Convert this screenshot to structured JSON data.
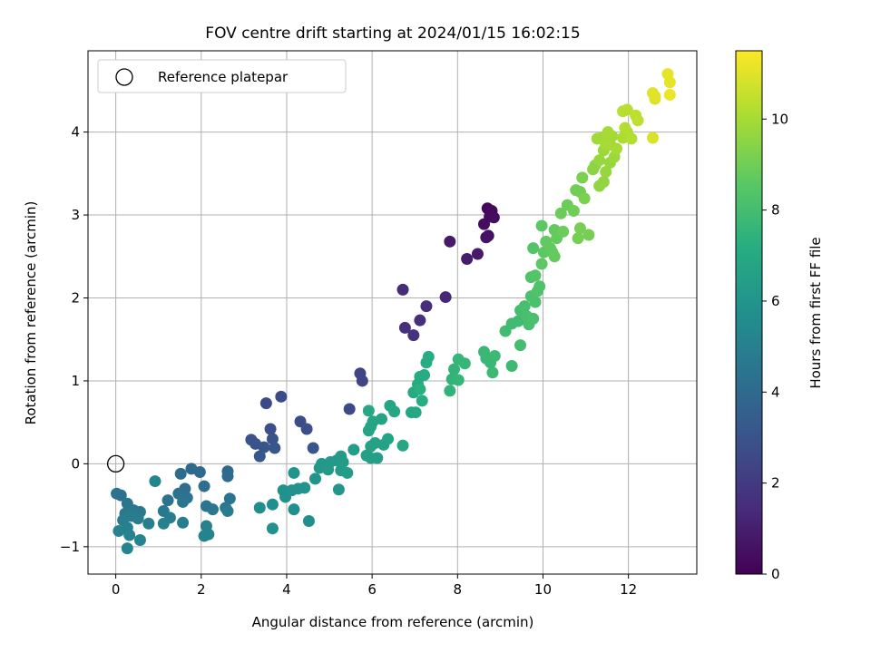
{
  "chart_data": {
    "type": "scatter",
    "title": "FOV centre drift starting at 2024/01/15 16:02:15",
    "xlabel": "Angular distance from reference (arcmin)",
    "ylabel": "Rotation from reference (arcmin)",
    "xlim": [
      -0.65,
      13.6
    ],
    "ylim": [
      -1.33,
      4.98
    ],
    "xticks": [
      0,
      2,
      4,
      6,
      8,
      10,
      12
    ],
    "yticks": [
      -1,
      0,
      1,
      2,
      3,
      4
    ],
    "xtick_labels": [
      "0",
      "2",
      "4",
      "6",
      "8",
      "10",
      "12"
    ],
    "ytick_labels": [
      "−1",
      "0",
      "1",
      "2",
      "3",
      "4"
    ],
    "grid": true,
    "legend": {
      "position": "upper-left",
      "entries": [
        "Reference platepar"
      ]
    },
    "reference_point": {
      "x": 0,
      "y": 0
    },
    "colorbar": {
      "label": "Hours from first FF file",
      "range": [
        0,
        11.5
      ],
      "ticks": [
        0,
        2,
        4,
        6,
        8,
        10
      ],
      "tick_labels": [
        "0",
        "2",
        "4",
        "6",
        "8",
        "10"
      ],
      "colormap": "viridis"
    },
    "point_series": {
      "value_field": "hours",
      "points": [
        {
          "x": 8.7,
          "y": 3.08,
          "h": 0.2
        },
        {
          "x": 8.8,
          "y": 3.05,
          "h": 0.3
        },
        {
          "x": 8.75,
          "y": 2.98,
          "h": 0.3
        },
        {
          "x": 8.85,
          "y": 2.97,
          "h": 0.4
        },
        {
          "x": 8.62,
          "y": 2.89,
          "h": 0.4
        },
        {
          "x": 8.72,
          "y": 2.75,
          "h": 0.5
        },
        {
          "x": 8.67,
          "y": 2.73,
          "h": 0.6
        },
        {
          "x": 7.82,
          "y": 2.68,
          "h": 0.8
        },
        {
          "x": 8.47,
          "y": 2.53,
          "h": 0.8
        },
        {
          "x": 8.22,
          "y": 2.47,
          "h": 0.9
        },
        {
          "x": 7.72,
          "y": 2.01,
          "h": 1.3
        },
        {
          "x": 6.72,
          "y": 2.1,
          "h": 1.4
        },
        {
          "x": 7.27,
          "y": 1.9,
          "h": 1.5
        },
        {
          "x": 7.12,
          "y": 1.73,
          "h": 1.6
        },
        {
          "x": 6.77,
          "y": 1.64,
          "h": 1.6
        },
        {
          "x": 6.97,
          "y": 1.55,
          "h": 1.7
        },
        {
          "x": 5.72,
          "y": 1.09,
          "h": 2.4
        },
        {
          "x": 5.77,
          "y": 1.0,
          "h": 2.4
        },
        {
          "x": 3.87,
          "y": 0.81,
          "h": 2.6
        },
        {
          "x": 3.52,
          "y": 0.73,
          "h": 2.6
        },
        {
          "x": 5.47,
          "y": 0.66,
          "h": 2.6
        },
        {
          "x": 4.32,
          "y": 0.51,
          "h": 2.7
        },
        {
          "x": 4.47,
          "y": 0.42,
          "h": 2.8
        },
        {
          "x": 3.62,
          "y": 0.42,
          "h": 2.8
        },
        {
          "x": 3.67,
          "y": 0.3,
          "h": 2.9
        },
        {
          "x": 3.17,
          "y": 0.29,
          "h": 3.0
        },
        {
          "x": 3.27,
          "y": 0.24,
          "h": 3.0
        },
        {
          "x": 3.47,
          "y": 0.2,
          "h": 3.1
        },
        {
          "x": 4.62,
          "y": 0.19,
          "h": 3.1
        },
        {
          "x": 3.72,
          "y": 0.19,
          "h": 3.1
        },
        {
          "x": 3.37,
          "y": 0.09,
          "h": 3.2
        },
        {
          "x": 1.77,
          "y": -0.06,
          "h": 4.0
        },
        {
          "x": 2.62,
          "y": -0.09,
          "h": 4.0
        },
        {
          "x": 1.97,
          "y": -0.1,
          "h": 4.0
        },
        {
          "x": 1.52,
          "y": -0.12,
          "h": 4.1
        },
        {
          "x": 2.62,
          "y": -0.15,
          "h": 4.1
        },
        {
          "x": 2.07,
          "y": -0.27,
          "h": 4.2
        },
        {
          "x": 1.62,
          "y": -0.3,
          "h": 4.2
        },
        {
          "x": 1.47,
          "y": -0.36,
          "h": 4.3
        },
        {
          "x": 0.02,
          "y": -0.36,
          "h": 4.3
        },
        {
          "x": 0.12,
          "y": -0.38,
          "h": 4.3
        },
        {
          "x": 1.67,
          "y": -0.41,
          "h": 4.4
        },
        {
          "x": 2.67,
          "y": -0.42,
          "h": 4.4
        },
        {
          "x": 1.22,
          "y": -0.44,
          "h": 4.4
        },
        {
          "x": 1.57,
          "y": -0.46,
          "h": 4.5
        },
        {
          "x": 0.27,
          "y": -0.48,
          "h": 4.5
        },
        {
          "x": 2.12,
          "y": -0.51,
          "h": 4.5
        },
        {
          "x": 2.57,
          "y": -0.53,
          "h": 4.6
        },
        {
          "x": 2.27,
          "y": -0.55,
          "h": 4.6
        },
        {
          "x": 0.42,
          "y": -0.56,
          "h": 4.6
        },
        {
          "x": 1.12,
          "y": -0.57,
          "h": 4.7
        },
        {
          "x": 0.57,
          "y": -0.58,
          "h": 4.7
        },
        {
          "x": 0.22,
          "y": -0.6,
          "h": 4.7
        },
        {
          "x": 0.37,
          "y": -0.63,
          "h": 4.8
        },
        {
          "x": 1.27,
          "y": -0.65,
          "h": 4.8
        },
        {
          "x": 0.52,
          "y": -0.66,
          "h": 4.8
        },
        {
          "x": 2.62,
          "y": -0.57,
          "h": 4.8
        },
        {
          "x": 0.17,
          "y": -0.68,
          "h": 4.9
        },
        {
          "x": 1.57,
          "y": -0.71,
          "h": 4.9
        },
        {
          "x": 0.77,
          "y": -0.72,
          "h": 4.9
        },
        {
          "x": 1.12,
          "y": -0.72,
          "h": 5.0
        },
        {
          "x": 2.12,
          "y": -0.75,
          "h": 5.0
        },
        {
          "x": 0.27,
          "y": -0.77,
          "h": 5.0
        },
        {
          "x": 0.07,
          "y": -0.81,
          "h": 5.1
        },
        {
          "x": 2.17,
          "y": -0.85,
          "h": 5.1
        },
        {
          "x": 2.07,
          "y": -0.87,
          "h": 5.1
        },
        {
          "x": 0.32,
          "y": -0.86,
          "h": 5.2
        },
        {
          "x": 0.57,
          "y": -0.92,
          "h": 5.2
        },
        {
          "x": 0.27,
          "y": -1.02,
          "h": 5.2
        },
        {
          "x": 0.92,
          "y": -0.21,
          "h": 5.3
        },
        {
          "x": 3.37,
          "y": -0.53,
          "h": 5.6
        },
        {
          "x": 3.67,
          "y": -0.49,
          "h": 5.7
        },
        {
          "x": 4.17,
          "y": -0.55,
          "h": 5.7
        },
        {
          "x": 4.52,
          "y": -0.69,
          "h": 5.7
        },
        {
          "x": 3.67,
          "y": -0.78,
          "h": 5.8
        },
        {
          "x": 3.92,
          "y": -0.32,
          "h": 5.8
        },
        {
          "x": 3.97,
          "y": -0.4,
          "h": 5.8
        },
        {
          "x": 4.12,
          "y": -0.32,
          "h": 5.9
        },
        {
          "x": 4.27,
          "y": -0.3,
          "h": 5.9
        },
        {
          "x": 4.42,
          "y": -0.29,
          "h": 5.9
        },
        {
          "x": 4.17,
          "y": -0.11,
          "h": 6.0
        },
        {
          "x": 4.67,
          "y": -0.18,
          "h": 6.0
        },
        {
          "x": 4.77,
          "y": -0.05,
          "h": 6.1
        },
        {
          "x": 5.22,
          "y": -0.31,
          "h": 6.1
        },
        {
          "x": 4.82,
          "y": 0.0,
          "h": 6.1
        },
        {
          "x": 4.97,
          "y": -0.07,
          "h": 6.2
        },
        {
          "x": 5.02,
          "y": 0.02,
          "h": 6.2
        },
        {
          "x": 5.17,
          "y": 0.04,
          "h": 6.2
        },
        {
          "x": 5.27,
          "y": 0.09,
          "h": 6.3
        },
        {
          "x": 5.32,
          "y": 0.02,
          "h": 6.3
        },
        {
          "x": 5.27,
          "y": -0.08,
          "h": 6.3
        },
        {
          "x": 5.42,
          "y": -0.11,
          "h": 6.4
        },
        {
          "x": 5.57,
          "y": 0.17,
          "h": 6.4
        },
        {
          "x": 5.87,
          "y": 0.1,
          "h": 6.5
        },
        {
          "x": 5.97,
          "y": 0.07,
          "h": 6.5
        },
        {
          "x": 6.12,
          "y": 0.07,
          "h": 6.5
        },
        {
          "x": 5.97,
          "y": 0.21,
          "h": 6.6
        },
        {
          "x": 6.07,
          "y": 0.25,
          "h": 6.6
        },
        {
          "x": 6.27,
          "y": 0.23,
          "h": 6.6
        },
        {
          "x": 6.37,
          "y": 0.3,
          "h": 6.7
        },
        {
          "x": 5.92,
          "y": 0.4,
          "h": 6.7
        },
        {
          "x": 6.22,
          "y": 0.54,
          "h": 6.7
        },
        {
          "x": 5.97,
          "y": 0.45,
          "h": 6.8
        },
        {
          "x": 6.02,
          "y": 0.51,
          "h": 6.8
        },
        {
          "x": 6.42,
          "y": 0.7,
          "h": 6.8
        },
        {
          "x": 6.52,
          "y": 0.63,
          "h": 6.9
        },
        {
          "x": 6.72,
          "y": 0.22,
          "h": 6.9
        },
        {
          "x": 6.92,
          "y": 0.62,
          "h": 6.9
        },
        {
          "x": 5.92,
          "y": 0.64,
          "h": 7.0
        },
        {
          "x": 6.97,
          "y": 0.86,
          "h": 7.0
        },
        {
          "x": 7.02,
          "y": 0.62,
          "h": 7.0
        },
        {
          "x": 7.07,
          "y": 0.96,
          "h": 7.1
        },
        {
          "x": 7.12,
          "y": 1.05,
          "h": 7.1
        },
        {
          "x": 7.22,
          "y": 1.07,
          "h": 7.1
        },
        {
          "x": 7.17,
          "y": 0.76,
          "h": 7.2
        },
        {
          "x": 7.27,
          "y": 1.22,
          "h": 7.2
        },
        {
          "x": 7.32,
          "y": 1.29,
          "h": 7.2
        },
        {
          "x": 7.12,
          "y": 0.9,
          "h": 7.3
        },
        {
          "x": 7.82,
          "y": 0.88,
          "h": 7.5
        },
        {
          "x": 7.87,
          "y": 1.02,
          "h": 7.5
        },
        {
          "x": 7.92,
          "y": 1.14,
          "h": 7.5
        },
        {
          "x": 8.02,
          "y": 1.01,
          "h": 7.6
        },
        {
          "x": 8.02,
          "y": 1.26,
          "h": 7.6
        },
        {
          "x": 8.17,
          "y": 1.21,
          "h": 7.6
        },
        {
          "x": 8.62,
          "y": 1.35,
          "h": 7.7
        },
        {
          "x": 8.77,
          "y": 1.22,
          "h": 7.7
        },
        {
          "x": 8.67,
          "y": 1.27,
          "h": 7.7
        },
        {
          "x": 8.82,
          "y": 1.1,
          "h": 7.8
        },
        {
          "x": 8.87,
          "y": 1.3,
          "h": 7.8
        },
        {
          "x": 9.27,
          "y": 1.18,
          "h": 7.8
        },
        {
          "x": 9.12,
          "y": 1.6,
          "h": 7.9
        },
        {
          "x": 9.27,
          "y": 1.69,
          "h": 7.9
        },
        {
          "x": 9.42,
          "y": 1.72,
          "h": 7.9
        },
        {
          "x": 9.47,
          "y": 1.43,
          "h": 8.0
        },
        {
          "x": 9.47,
          "y": 1.85,
          "h": 8.0
        },
        {
          "x": 9.57,
          "y": 1.9,
          "h": 8.1
        },
        {
          "x": 9.67,
          "y": 1.68,
          "h": 8.1
        },
        {
          "x": 9.62,
          "y": 1.78,
          "h": 8.1
        },
        {
          "x": 9.77,
          "y": 1.75,
          "h": 8.2
        },
        {
          "x": 9.72,
          "y": 2.02,
          "h": 8.2
        },
        {
          "x": 9.82,
          "y": 1.95,
          "h": 8.2
        },
        {
          "x": 9.87,
          "y": 2.08,
          "h": 8.3
        },
        {
          "x": 9.92,
          "y": 2.14,
          "h": 8.3
        },
        {
          "x": 9.72,
          "y": 2.25,
          "h": 8.3
        },
        {
          "x": 9.77,
          "y": 2.6,
          "h": 8.4
        },
        {
          "x": 9.82,
          "y": 2.27,
          "h": 8.4
        },
        {
          "x": 9.97,
          "y": 2.41,
          "h": 8.6
        },
        {
          "x": 10.02,
          "y": 2.55,
          "h": 8.6
        },
        {
          "x": 9.97,
          "y": 2.87,
          "h": 8.6
        },
        {
          "x": 10.07,
          "y": 2.68,
          "h": 8.7
        },
        {
          "x": 10.22,
          "y": 2.55,
          "h": 8.7
        },
        {
          "x": 10.17,
          "y": 2.6,
          "h": 8.7
        },
        {
          "x": 10.27,
          "y": 2.5,
          "h": 8.8
        },
        {
          "x": 10.32,
          "y": 2.72,
          "h": 8.8
        },
        {
          "x": 10.27,
          "y": 2.82,
          "h": 8.8
        },
        {
          "x": 10.42,
          "y": 3.02,
          "h": 8.9
        },
        {
          "x": 10.47,
          "y": 2.8,
          "h": 8.9
        },
        {
          "x": 10.57,
          "y": 3.12,
          "h": 8.9
        },
        {
          "x": 10.77,
          "y": 3.3,
          "h": 9.0
        },
        {
          "x": 10.87,
          "y": 3.28,
          "h": 9.0
        },
        {
          "x": 10.72,
          "y": 3.05,
          "h": 9.0
        },
        {
          "x": 10.87,
          "y": 2.84,
          "h": 9.1
        },
        {
          "x": 10.82,
          "y": 2.72,
          "h": 9.1
        },
        {
          "x": 11.07,
          "y": 2.76,
          "h": 9.1
        },
        {
          "x": 10.97,
          "y": 3.2,
          "h": 9.2
        },
        {
          "x": 10.92,
          "y": 3.45,
          "h": 9.2
        },
        {
          "x": 11.17,
          "y": 3.55,
          "h": 9.5
        },
        {
          "x": 11.22,
          "y": 3.6,
          "h": 9.5
        },
        {
          "x": 11.32,
          "y": 3.35,
          "h": 9.6
        },
        {
          "x": 11.42,
          "y": 3.4,
          "h": 9.6
        },
        {
          "x": 11.47,
          "y": 3.52,
          "h": 9.7
        },
        {
          "x": 11.32,
          "y": 3.66,
          "h": 9.7
        },
        {
          "x": 11.57,
          "y": 3.63,
          "h": 9.7
        },
        {
          "x": 11.42,
          "y": 3.78,
          "h": 9.8
        },
        {
          "x": 11.57,
          "y": 3.85,
          "h": 9.8
        },
        {
          "x": 11.67,
          "y": 3.7,
          "h": 9.8
        },
        {
          "x": 11.62,
          "y": 3.95,
          "h": 9.9
        },
        {
          "x": 11.37,
          "y": 3.93,
          "h": 9.9
        },
        {
          "x": 11.27,
          "y": 3.92,
          "h": 9.9
        },
        {
          "x": 11.47,
          "y": 3.85,
          "h": 10.0
        },
        {
          "x": 11.52,
          "y": 4.0,
          "h": 10.0
        },
        {
          "x": 11.72,
          "y": 3.8,
          "h": 10.0
        },
        {
          "x": 11.87,
          "y": 3.93,
          "h": 10.1
        },
        {
          "x": 11.97,
          "y": 4.0,
          "h": 10.1
        },
        {
          "x": 12.07,
          "y": 3.92,
          "h": 10.2
        },
        {
          "x": 11.92,
          "y": 4.05,
          "h": 10.2
        },
        {
          "x": 11.87,
          "y": 4.25,
          "h": 10.3
        },
        {
          "x": 11.97,
          "y": 4.27,
          "h": 10.3
        },
        {
          "x": 12.22,
          "y": 4.14,
          "h": 10.4
        },
        {
          "x": 12.17,
          "y": 4.2,
          "h": 10.4
        },
        {
          "x": 12.57,
          "y": 3.93,
          "h": 10.9
        },
        {
          "x": 12.62,
          "y": 4.4,
          "h": 10.9
        },
        {
          "x": 12.57,
          "y": 4.47,
          "h": 11.0
        },
        {
          "x": 12.62,
          "y": 4.43,
          "h": 11.0
        },
        {
          "x": 12.92,
          "y": 4.7,
          "h": 11.1
        },
        {
          "x": 12.97,
          "y": 4.6,
          "h": 11.1
        },
        {
          "x": 12.97,
          "y": 4.45,
          "h": 11.2
        }
      ]
    }
  }
}
